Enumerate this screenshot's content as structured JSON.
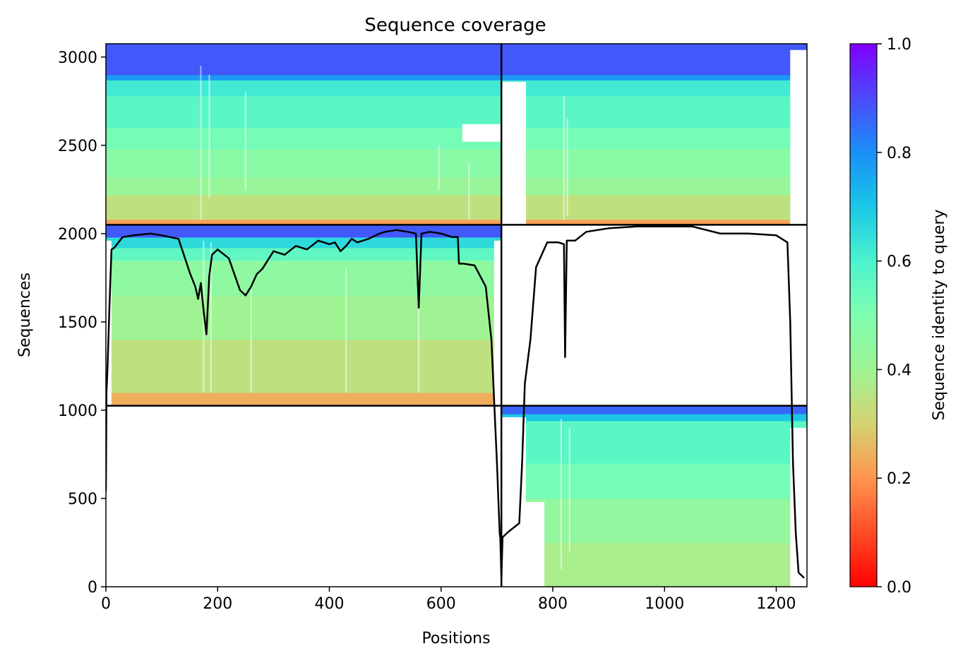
{
  "chart_data": {
    "type": "heatmap",
    "title": "Sequence coverage",
    "xlabel": "Positions",
    "ylabel": "Sequences",
    "xlim": [
      0,
      1255
    ],
    "ylim": [
      0,
      3075
    ],
    "x_ticks": [
      0,
      200,
      400,
      600,
      800,
      1000,
      1200
    ],
    "y_ticks": [
      0,
      500,
      1000,
      1500,
      2000,
      2500,
      3000
    ],
    "colorbar": {
      "label": "Sequence identity to query",
      "colormap": "rainbow_r",
      "range": [
        0,
        1
      ],
      "ticks": [
        "0.0",
        "0.2",
        "0.4",
        "0.6",
        "0.8",
        "1.0"
      ]
    },
    "block_boundaries": {
      "x": 708,
      "y": [
        1025,
        2050
      ]
    },
    "blocks": [
      {
        "name": "top-left",
        "x": [
          0,
          708
        ],
        "y": [
          2050,
          3075
        ],
        "bands": [
          [
            2050,
            2080,
            0.22
          ],
          [
            2080,
            2220,
            0.34
          ],
          [
            2220,
            2320,
            0.42
          ],
          [
            2320,
            2480,
            0.47
          ],
          [
            2480,
            2600,
            0.52
          ],
          [
            2600,
            2780,
            0.57
          ],
          [
            2780,
            2870,
            0.62
          ],
          [
            2870,
            2900,
            0.78
          ],
          [
            2900,
            3075,
            0.88
          ]
        ]
      },
      {
        "name": "top-right",
        "x": [
          708,
          1255
        ],
        "y": [
          2050,
          3075
        ],
        "bands": [
          [
            2050,
            2080,
            0.22
          ],
          [
            2080,
            2220,
            0.34
          ],
          [
            2220,
            2320,
            0.42
          ],
          [
            2320,
            2480,
            0.47
          ],
          [
            2480,
            2600,
            0.52
          ],
          [
            2600,
            2780,
            0.57
          ],
          [
            2780,
            2870,
            0.62
          ],
          [
            2870,
            2900,
            0.78
          ],
          [
            2900,
            3075,
            0.88
          ]
        ]
      },
      {
        "name": "middle-left",
        "x": [
          0,
          708
        ],
        "y": [
          1025,
          2050
        ],
        "bands": [
          [
            1025,
            1100,
            0.24
          ],
          [
            1100,
            1400,
            0.34
          ],
          [
            1400,
            1650,
            0.4
          ],
          [
            1650,
            1850,
            0.45
          ],
          [
            1850,
            1920,
            0.56
          ],
          [
            1920,
            1980,
            0.66
          ],
          [
            1980,
            2050,
            0.88
          ]
        ]
      },
      {
        "name": "bottom-right",
        "x": [
          708,
          1255
        ],
        "y": [
          0,
          1025
        ],
        "bands": [
          [
            0,
            250,
            0.38
          ],
          [
            250,
            500,
            0.44
          ],
          [
            500,
            700,
            0.52
          ],
          [
            700,
            940,
            0.57
          ],
          [
            940,
            980,
            0.7
          ],
          [
            980,
            1025,
            0.86
          ]
        ]
      }
    ],
    "coverage_line": {
      "name": "coverage",
      "x": [
        0,
        1,
        3,
        6,
        10,
        15,
        30,
        50,
        80,
        100,
        130,
        150,
        160,
        165,
        170,
        175,
        180,
        185,
        190,
        200,
        220,
        240,
        250,
        260,
        270,
        280,
        300,
        320,
        340,
        360,
        380,
        400,
        410,
        420,
        430,
        440,
        450,
        470,
        490,
        500,
        520,
        540,
        555,
        560,
        565,
        580,
        600,
        620,
        630,
        632,
        640,
        660,
        680,
        690,
        700,
        705,
        706,
        708,
        710,
        720,
        740,
        745,
        750,
        760,
        770,
        790,
        810,
        820,
        822,
        825,
        830,
        840,
        860,
        900,
        950,
        1000,
        1050,
        1100,
        1150,
        1200,
        1220,
        1225,
        1230,
        1235,
        1240,
        1250
      ],
      "y": [
        540,
        1100,
        1250,
        1550,
        1910,
        1920,
        1980,
        1990,
        2000,
        1990,
        1970,
        1780,
        1700,
        1630,
        1720,
        1560,
        1430,
        1760,
        1880,
        1910,
        1860,
        1680,
        1650,
        1700,
        1770,
        1800,
        1900,
        1880,
        1930,
        1910,
        1960,
        1940,
        1950,
        1900,
        1930,
        1970,
        1950,
        1970,
        2000,
        2010,
        2020,
        2010,
        2000,
        1580,
        2000,
        2010,
        2000,
        1980,
        1980,
        1830,
        1830,
        1820,
        1700,
        1400,
        700,
        300,
        280,
        40,
        280,
        310,
        360,
        700,
        1150,
        1400,
        1810,
        1950,
        1950,
        1940,
        1300,
        1960,
        1960,
        1960,
        2010,
        2030,
        2040,
        2040,
        2040,
        2000,
        2000,
        1990,
        1950,
        1500,
        700,
        300,
        80,
        50
      ]
    }
  }
}
